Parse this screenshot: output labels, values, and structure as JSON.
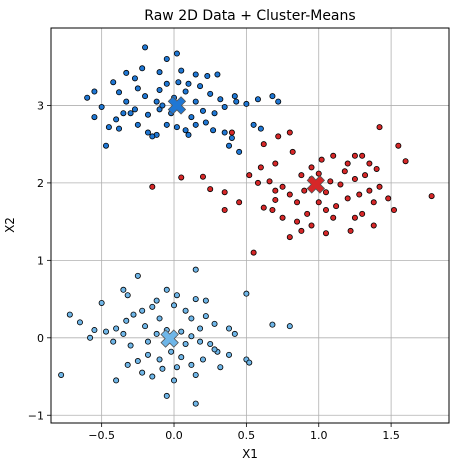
{
  "chart_data": {
    "type": "scatter",
    "title": "Raw 2D Data + Cluster-Means",
    "xlabel": "X1",
    "ylabel": "X2",
    "xlim": [
      -0.85,
      1.9
    ],
    "ylim": [
      -1.1,
      4.0
    ],
    "xticks": [
      -0.5,
      0.0,
      0.5,
      1.0,
      1.5
    ],
    "xtick_labels": [
      "−0.5",
      "0.0",
      "0.5",
      "1.0",
      "1.5"
    ],
    "yticks": [
      -1,
      0,
      1,
      2,
      3
    ],
    "ytick_labels": [
      "−1",
      "0",
      "1",
      "2",
      "3"
    ],
    "grid": true,
    "series": [
      {
        "color": "#1f77d4",
        "mean": [
          0.02,
          3.0
        ],
        "points": [
          [
            -0.2,
            3.75
          ],
          [
            -0.05,
            3.6
          ],
          [
            0.02,
            3.67
          ],
          [
            -0.22,
            3.48
          ],
          [
            -0.33,
            3.42
          ],
          [
            -0.27,
            3.35
          ],
          [
            -0.1,
            3.43
          ],
          [
            0.05,
            3.45
          ],
          [
            0.15,
            3.4
          ],
          [
            0.23,
            3.38
          ],
          [
            0.3,
            3.4
          ],
          [
            0.1,
            3.28
          ],
          [
            -0.42,
            3.3
          ],
          [
            -0.38,
            3.17
          ],
          [
            -0.55,
            3.18
          ],
          [
            -0.6,
            3.1
          ],
          [
            -0.5,
            2.98
          ],
          [
            -0.33,
            3.05
          ],
          [
            -0.2,
            3.12
          ],
          [
            -0.12,
            3.05
          ],
          [
            -0.1,
            3.2
          ],
          [
            -0.05,
            3.28
          ],
          [
            0.03,
            3.3
          ],
          [
            0.08,
            3.18
          ],
          [
            0.18,
            3.25
          ],
          [
            0.25,
            3.15
          ],
          [
            0.32,
            3.08
          ],
          [
            0.42,
            3.12
          ],
          [
            0.43,
            3.05
          ],
          [
            0.5,
            3.02
          ],
          [
            0.58,
            3.08
          ],
          [
            0.68,
            3.12
          ],
          [
            0.72,
            3.05
          ],
          [
            0.35,
            2.98
          ],
          [
            0.28,
            2.9
          ],
          [
            0.2,
            2.93
          ],
          [
            0.12,
            2.85
          ],
          [
            0.05,
            2.95
          ],
          [
            -0.02,
            2.9
          ],
          [
            -0.1,
            2.95
          ],
          [
            -0.18,
            2.88
          ],
          [
            -0.27,
            2.95
          ],
          [
            -0.35,
            2.9
          ],
          [
            -0.4,
            2.82
          ],
          [
            -0.55,
            2.85
          ],
          [
            -0.45,
            2.72
          ],
          [
            -0.38,
            2.7
          ],
          [
            -0.25,
            2.75
          ],
          [
            -0.18,
            2.65
          ],
          [
            -0.12,
            2.62
          ],
          [
            -0.05,
            2.75
          ],
          [
            0.02,
            2.72
          ],
          [
            0.08,
            2.68
          ],
          [
            0.15,
            2.75
          ],
          [
            0.22,
            2.78
          ],
          [
            0.1,
            2.62
          ],
          [
            0.27,
            2.68
          ],
          [
            0.35,
            2.65
          ],
          [
            0.4,
            2.58
          ],
          [
            0.38,
            2.48
          ],
          [
            0.45,
            2.4
          ],
          [
            0.55,
            2.75
          ],
          [
            0.6,
            2.7
          ],
          [
            -0.47,
            2.48
          ],
          [
            -0.15,
            2.6
          ],
          [
            -0.3,
            2.9
          ],
          [
            0.0,
            3.1
          ],
          [
            -0.08,
            3.0
          ],
          [
            0.15,
            3.05
          ],
          [
            -0.25,
            3.22
          ]
        ]
      },
      {
        "color": "#d62728",
        "mean": [
          0.98,
          1.98
        ],
        "points": [
          [
            0.88,
            2.1
          ],
          [
            0.95,
            2.2
          ],
          [
            1.02,
            2.3
          ],
          [
            1.1,
            2.35
          ],
          [
            1.2,
            2.25
          ],
          [
            1.3,
            2.35
          ],
          [
            1.42,
            2.72
          ],
          [
            1.55,
            2.48
          ],
          [
            1.6,
            2.28
          ],
          [
            1.78,
            1.83
          ],
          [
            0.62,
            2.5
          ],
          [
            0.72,
            2.6
          ],
          [
            0.8,
            2.65
          ],
          [
            0.82,
            2.4
          ],
          [
            0.7,
            2.25
          ],
          [
            0.6,
            2.2
          ],
          [
            0.52,
            2.1
          ],
          [
            0.58,
            2.0
          ],
          [
            0.66,
            2.02
          ],
          [
            0.75,
            1.95
          ],
          [
            0.8,
            1.85
          ],
          [
            0.7,
            1.78
          ],
          [
            0.62,
            1.68
          ],
          [
            0.68,
            1.65
          ],
          [
            0.75,
            1.55
          ],
          [
            0.85,
            1.5
          ],
          [
            0.92,
            1.6
          ],
          [
            1.0,
            1.75
          ],
          [
            1.05,
            1.65
          ],
          [
            1.12,
            1.7
          ],
          [
            1.2,
            1.8
          ],
          [
            1.28,
            1.85
          ],
          [
            1.35,
            1.9
          ],
          [
            1.42,
            1.95
          ],
          [
            1.48,
            1.8
          ],
          [
            1.38,
            1.75
          ],
          [
            1.3,
            1.6
          ],
          [
            1.25,
            1.55
          ],
          [
            1.38,
            1.45
          ],
          [
            1.22,
            1.38
          ],
          [
            1.05,
            1.35
          ],
          [
            0.95,
            1.45
          ],
          [
            0.88,
            1.38
          ],
          [
            0.8,
            1.3
          ],
          [
            0.55,
            1.1
          ],
          [
            0.25,
            1.92
          ],
          [
            0.35,
            1.88
          ],
          [
            0.45,
            1.75
          ],
          [
            0.35,
            1.65
          ],
          [
            0.05,
            2.07
          ],
          [
            0.4,
            2.65
          ],
          [
            0.95,
            2.05
          ],
          [
            1.0,
            2.12
          ],
          [
            1.08,
            2.02
          ],
          [
            1.15,
            1.98
          ],
          [
            1.25,
            2.05
          ],
          [
            1.32,
            2.1
          ],
          [
            1.4,
            2.18
          ],
          [
            1.35,
            2.25
          ],
          [
            1.18,
            2.15
          ],
          [
            0.9,
            1.9
          ],
          [
            0.85,
            1.75
          ],
          [
            1.05,
            1.88
          ],
          [
            1.1,
            1.55
          ],
          [
            -0.15,
            1.95
          ],
          [
            0.2,
            2.08
          ],
          [
            1.52,
            1.65
          ],
          [
            1.25,
            2.35
          ],
          [
            0.7,
            1.9
          ]
        ]
      },
      {
        "color": "#6fb6e8",
        "mean": [
          -0.03,
          -0.01
        ],
        "points": [
          [
            -0.25,
            0.8
          ],
          [
            0.15,
            0.88
          ],
          [
            -0.05,
            0.62
          ],
          [
            -0.35,
            0.62
          ],
          [
            -0.32,
            0.55
          ],
          [
            0.02,
            0.55
          ],
          [
            -0.12,
            0.48
          ],
          [
            -0.5,
            0.45
          ],
          [
            0.5,
            0.57
          ],
          [
            0.15,
            0.5
          ],
          [
            0.22,
            0.48
          ],
          [
            -0.72,
            0.3
          ],
          [
            -0.65,
            0.2
          ],
          [
            -0.55,
            0.1
          ],
          [
            -0.47,
            0.08
          ],
          [
            -0.4,
            0.12
          ],
          [
            -0.33,
            0.22
          ],
          [
            -0.28,
            0.3
          ],
          [
            -0.22,
            0.35
          ],
          [
            -0.15,
            0.4
          ],
          [
            -0.1,
            0.25
          ],
          [
            0.0,
            0.42
          ],
          [
            0.08,
            0.35
          ],
          [
            0.12,
            0.25
          ],
          [
            0.22,
            0.28
          ],
          [
            0.28,
            0.18
          ],
          [
            0.38,
            0.12
          ],
          [
            0.42,
            0.05
          ],
          [
            0.68,
            0.17
          ],
          [
            0.8,
            0.15
          ],
          [
            -0.58,
            0.0
          ],
          [
            -0.42,
            -0.05
          ],
          [
            -0.3,
            -0.1
          ],
          [
            -0.18,
            -0.05
          ],
          [
            -0.12,
            0.05
          ],
          [
            -0.05,
            0.1
          ],
          [
            0.05,
            0.08
          ],
          [
            0.12,
            0.02
          ],
          [
            0.18,
            -0.05
          ],
          [
            0.25,
            -0.08
          ],
          [
            0.3,
            -0.18
          ],
          [
            0.38,
            -0.22
          ],
          [
            0.5,
            -0.28
          ],
          [
            0.52,
            -0.32
          ],
          [
            -0.78,
            -0.48
          ],
          [
            -0.4,
            -0.55
          ],
          [
            -0.32,
            -0.35
          ],
          [
            -0.25,
            -0.3
          ],
          [
            -0.18,
            -0.22
          ],
          [
            -0.1,
            -0.28
          ],
          [
            -0.02,
            -0.18
          ],
          [
            0.05,
            -0.25
          ],
          [
            0.12,
            -0.35
          ],
          [
            0.2,
            -0.28
          ],
          [
            0.32,
            -0.38
          ],
          [
            -0.08,
            -0.4
          ],
          [
            0.0,
            -0.55
          ],
          [
            0.15,
            -0.48
          ],
          [
            -0.15,
            -0.5
          ],
          [
            -0.05,
            -0.75
          ],
          [
            0.15,
            -0.85
          ],
          [
            -0.22,
            -0.45
          ],
          [
            0.28,
            -0.15
          ],
          [
            -0.35,
            0.05
          ],
          [
            0.08,
            -0.08
          ],
          [
            0.18,
            0.12
          ],
          [
            -0.2,
            0.15
          ],
          [
            0.02,
            -0.38
          ]
        ]
      }
    ]
  }
}
